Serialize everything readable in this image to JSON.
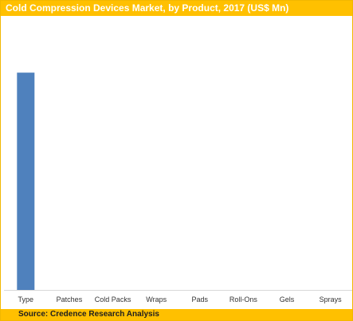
{
  "chart_data": {
    "type": "bar",
    "title": "Cold Compression Devices Market, by Product, 2017 (US$ Mn)",
    "categories": [
      "Type",
      "Patches",
      "Cold Packs",
      "Wraps",
      "Pads",
      "Roll-Ons",
      "Gels",
      "Sprays"
    ],
    "values": [
      80,
      0,
      0,
      0,
      0,
      0,
      0,
      0
    ],
    "ylim": [
      0,
      100
    ],
    "grid": false,
    "legend": "none",
    "source": "Source: Credence Research Analysis",
    "bar_color": "#4f81bd"
  }
}
